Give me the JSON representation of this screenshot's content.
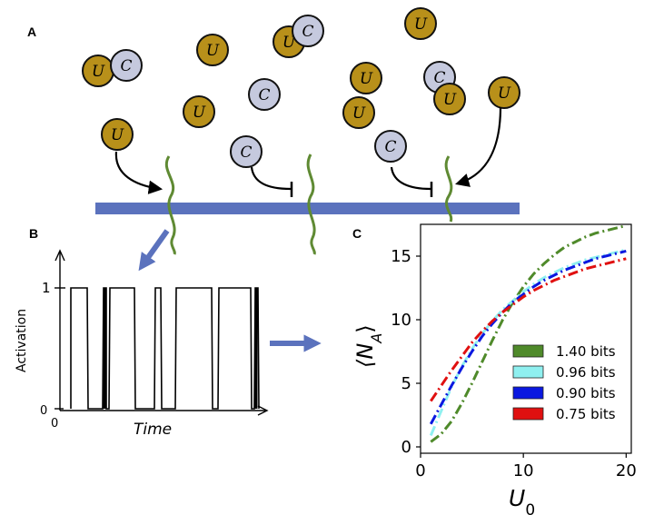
{
  "panels": {
    "a": "A",
    "b": "B",
    "c": "C"
  },
  "molecules": {
    "u": "U",
    "c": "C"
  },
  "colors": {
    "u_fill": "#b8901a",
    "c_fill": "#c5c9de",
    "membrane": "#5b72bd",
    "receptor": "#5f8a33",
    "arrow": "#5b72bd"
  },
  "trace": {
    "ylabel": "Activation",
    "xlabel": "Time",
    "tick_one": "1",
    "tick_zero": "0",
    "origin": "0"
  },
  "chart_data": {
    "type": "line",
    "xlabel": "U",
    "xlabel_sub": "0",
    "ylabel": "⟨N",
    "ylabel_sub": "A",
    "ylabel_close": "⟩",
    "xlim": [
      0,
      20.5
    ],
    "ylim": [
      -0.5,
      17.5
    ],
    "xticks": [
      "0",
      "10",
      "20"
    ],
    "yticks": [
      "0",
      "5",
      "10",
      "15"
    ],
    "series": [
      {
        "name": "1.40 bits",
        "color": "#4f8a2a",
        "x": [
          1,
          2,
          3,
          4,
          5,
          6,
          7,
          8,
          9,
          10,
          11,
          12,
          13,
          14,
          15,
          16,
          17,
          18,
          19,
          20
        ],
        "y": [
          0.4,
          1.0,
          2.0,
          3.4,
          5.0,
          6.7,
          8.4,
          10.0,
          11.4,
          12.6,
          13.6,
          14.4,
          15.1,
          15.7,
          16.1,
          16.5,
          16.8,
          17.0,
          17.2,
          17.4
        ]
      },
      {
        "name": "0.96 bits",
        "color": "#8ff0f0",
        "x": [
          1,
          2,
          3,
          4,
          5,
          6,
          7,
          8,
          9,
          10,
          11,
          12,
          13,
          14,
          15,
          16,
          17,
          18,
          19,
          20
        ],
        "y": [
          0.9,
          2.8,
          4.7,
          6.3,
          7.7,
          8.9,
          9.9,
          10.8,
          11.5,
          12.2,
          12.8,
          13.3,
          13.7,
          14.1,
          14.4,
          14.7,
          14.9,
          15.1,
          15.3,
          15.5
        ]
      },
      {
        "name": "0.90 bits",
        "color": "#0a18e0",
        "x": [
          1,
          2,
          3,
          4,
          5,
          6,
          7,
          8,
          9,
          10,
          11,
          12,
          13,
          14,
          15,
          16,
          17,
          18,
          19,
          20
        ],
        "y": [
          1.8,
          3.3,
          4.8,
          6.2,
          7.5,
          8.7,
          9.7,
          10.6,
          11.4,
          12.0,
          12.6,
          13.1,
          13.5,
          13.9,
          14.2,
          14.5,
          14.8,
          15.0,
          15.2,
          15.4
        ]
      },
      {
        "name": "0.75 bits",
        "color": "#e01010",
        "x": [
          1,
          2,
          3,
          4,
          5,
          6,
          7,
          8,
          9,
          10,
          11,
          12,
          13,
          14,
          15,
          16,
          17,
          18,
          19,
          20
        ],
        "y": [
          3.6,
          4.8,
          6.0,
          7.1,
          8.2,
          9.1,
          9.9,
          10.6,
          11.2,
          11.8,
          12.3,
          12.7,
          13.1,
          13.4,
          13.7,
          14.0,
          14.2,
          14.4,
          14.6,
          14.8
        ]
      }
    ]
  }
}
